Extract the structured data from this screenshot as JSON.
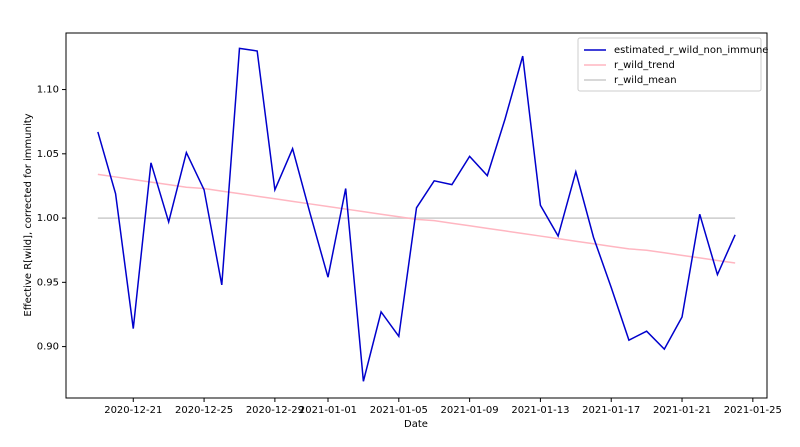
{
  "chart_data": {
    "type": "line",
    "x_label": "Date",
    "y_label": "Effective R[wild], corrected for immunity",
    "x": [
      "2020-12-19",
      "2020-12-20",
      "2020-12-21",
      "2020-12-22",
      "2020-12-23",
      "2020-12-24",
      "2020-12-25",
      "2020-12-26",
      "2020-12-27",
      "2020-12-28",
      "2020-12-29",
      "2020-12-30",
      "2020-12-31",
      "2021-01-01",
      "2021-01-02",
      "2021-01-03",
      "2021-01-04",
      "2021-01-05",
      "2021-01-06",
      "2021-01-07",
      "2021-01-08",
      "2021-01-09",
      "2021-01-10",
      "2021-01-11",
      "2021-01-12",
      "2021-01-13",
      "2021-01-14",
      "2021-01-15",
      "2021-01-16",
      "2021-01-17",
      "2021-01-18",
      "2021-01-19",
      "2021-01-20",
      "2021-01-21",
      "2021-01-22",
      "2021-01-23",
      "2021-01-24"
    ],
    "series": [
      {
        "name": "estimated_r_wild_non_immune",
        "color": "#0000cc",
        "values": [
          1.067,
          1.019,
          0.914,
          1.043,
          0.997,
          1.051,
          1.022,
          0.948,
          1.132,
          1.13,
          1.022,
          1.054,
          1.003,
          0.954,
          1.023,
          0.873,
          0.927,
          0.908,
          1.008,
          1.029,
          1.026,
          1.048,
          1.033,
          1.077,
          1.126,
          1.01,
          0.986,
          1.036,
          0.985,
          0.946,
          0.905,
          0.912,
          0.898,
          0.923,
          1.003,
          0.956,
          0.987
        ]
      },
      {
        "name": "r_wild_trend",
        "color": "#ffb6c1",
        "values": [
          1.034,
          1.032,
          1.03,
          1.028,
          1.026,
          1.024,
          1.023,
          1.021,
          1.019,
          1.017,
          1.015,
          1.013,
          1.011,
          1.009,
          1.007,
          1.005,
          1.003,
          1.001,
          0.999,
          0.998,
          0.996,
          0.994,
          0.992,
          0.99,
          0.988,
          0.986,
          0.984,
          0.982,
          0.98,
          0.978,
          0.976,
          0.975,
          0.973,
          0.971,
          0.969,
          0.967,
          0.965
        ]
      },
      {
        "name": "r_wild_mean",
        "color": "#cccccc",
        "values": [
          1.0,
          1.0,
          1.0,
          1.0,
          1.0,
          1.0,
          1.0,
          1.0,
          1.0,
          1.0,
          1.0,
          1.0,
          1.0,
          1.0,
          1.0,
          1.0,
          1.0,
          1.0,
          1.0,
          1.0,
          1.0,
          1.0,
          1.0,
          1.0,
          1.0,
          1.0,
          1.0,
          1.0,
          1.0,
          1.0,
          1.0,
          1.0,
          1.0,
          1.0,
          1.0,
          1.0,
          1.0
        ]
      }
    ],
    "ylim": [
      0.86,
      1.144
    ],
    "yticks": [
      {
        "value": 0.9,
        "label": "0.90"
      },
      {
        "value": 0.95,
        "label": "0.95"
      },
      {
        "value": 1.0,
        "label": "1.00"
      },
      {
        "value": 1.05,
        "label": "1.05"
      },
      {
        "value": 1.1,
        "label": "1.10"
      }
    ],
    "xticks": [
      "2020-12-21",
      "2020-12-25",
      "2020-12-29",
      "2021-01-01",
      "2021-01-05",
      "2021-01-09",
      "2021-01-13",
      "2021-01-17",
      "2021-01-21",
      "2021-01-25"
    ],
    "legend": "upper right"
  }
}
